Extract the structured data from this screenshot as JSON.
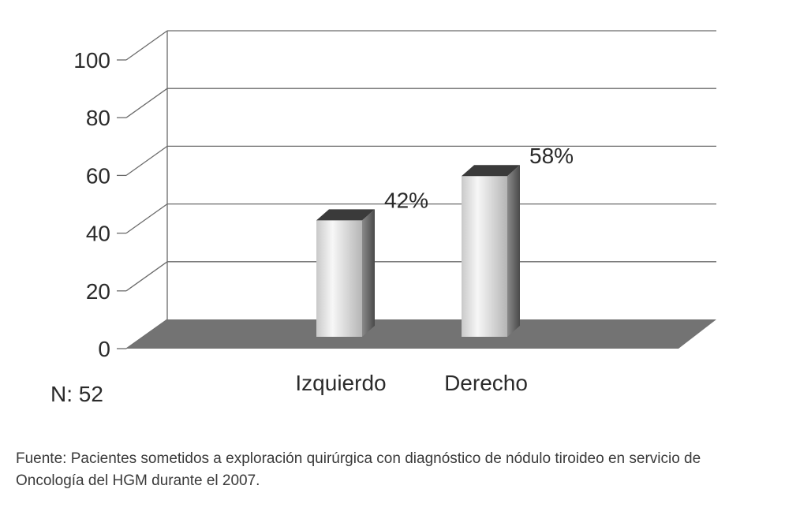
{
  "chart_data": {
    "type": "bar",
    "categories": [
      "Izquierdo",
      "Derecho"
    ],
    "values": [
      42,
      58
    ],
    "data_labels": [
      "42%",
      "58%"
    ],
    "yticks": [
      "0",
      "20",
      "40",
      "60",
      "80",
      "100"
    ],
    "ylim": [
      0,
      100
    ],
    "grid": true,
    "style": "3d"
  },
  "sample_note": "N: 52",
  "source_note": "Fuente: Pacientes sometidos a exploración quirúrgica con diagnóstico de nódulo tiroideo en servicio de Oncología del HGM durante el 2007.",
  "colors": {
    "floor": "#737373",
    "bar_front_light": "#f4f4f4",
    "bar_front_dark": "#bdbdbd",
    "bar_side": "#5a5a5a",
    "bar_top": "#3a3a3a",
    "grid": "#6a6a6a"
  }
}
